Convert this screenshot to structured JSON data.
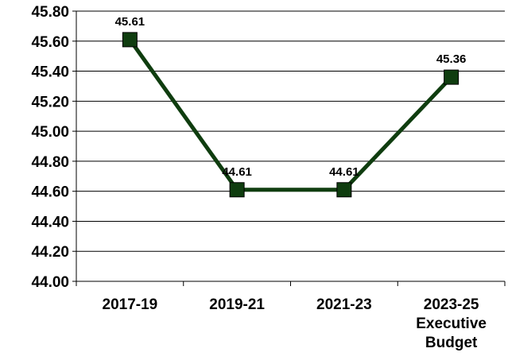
{
  "chart_data": {
    "type": "line",
    "title": "",
    "xlabel": "",
    "ylabel": "",
    "categories": [
      [
        "2017-19"
      ],
      [
        "2019-21"
      ],
      [
        "2021-23"
      ],
      [
        "2023-25",
        "Executive",
        "Budget"
      ]
    ],
    "series": [
      {
        "values": [
          45.61,
          44.61,
          44.61,
          45.36
        ],
        "color": "#0f3d0f",
        "marker": "square"
      }
    ],
    "data_labels": [
      "45.61",
      "44.61",
      "44.61",
      "45.36"
    ],
    "ylim": [
      44.0,
      45.8
    ],
    "yticks": [
      44.0,
      44.2,
      44.4,
      44.6,
      44.8,
      45.0,
      45.2,
      45.4,
      45.6,
      45.8
    ],
    "ytick_labels": [
      "44.00",
      "44.20",
      "44.40",
      "44.60",
      "44.80",
      "45.00",
      "45.20",
      "45.40",
      "45.60",
      "45.80"
    ],
    "grid": true,
    "legend": "none"
  }
}
